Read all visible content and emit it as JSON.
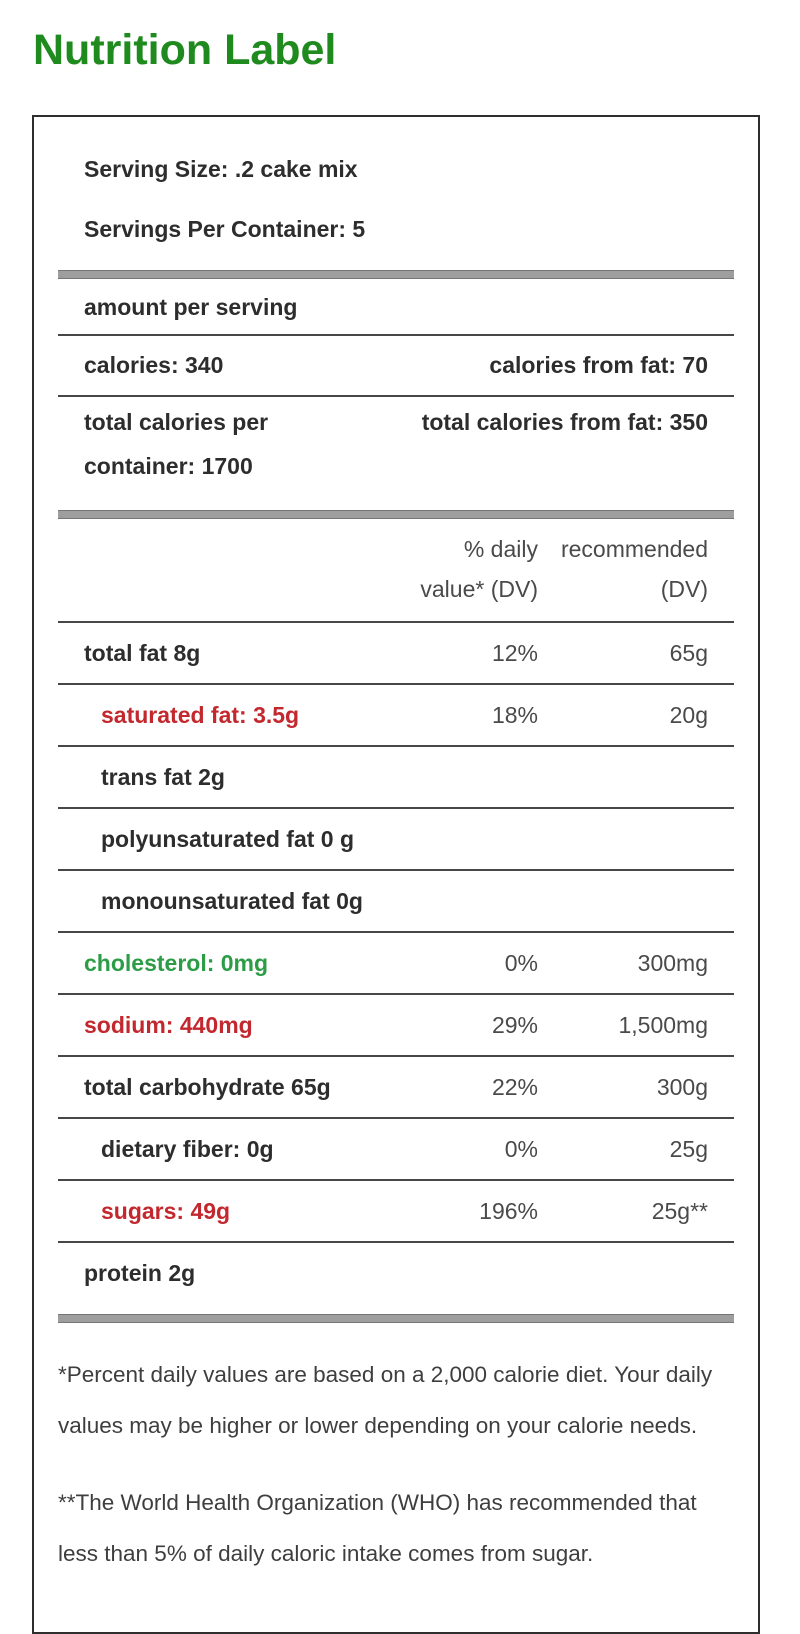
{
  "page": {
    "title": "Nutrition Label"
  },
  "label": {
    "serving_size": "Serving Size: .2 cake mix",
    "servings_per_container": "Servings Per Container: 5",
    "amount_per_serving": "amount per serving",
    "calories": "calories: 340",
    "calories_from_fat": "calories from fat: 70",
    "total_calories_per_container": "total calories per container: 1700",
    "total_calories_from_fat": "total calories from fat: 350",
    "columns": {
      "daily_value": "% daily value* (DV)",
      "recommended": "recommended (DV)"
    },
    "rows": [
      {
        "label": "total fat 8g",
        "dv": "12%",
        "recommended": "65g",
        "color": "default",
        "indent": false
      },
      {
        "label": "saturated fat: 3.5g",
        "dv": "18%",
        "recommended": "20g",
        "color": "red",
        "indent": true
      },
      {
        "label": "trans fat 2g",
        "dv": "",
        "recommended": "",
        "color": "default",
        "indent": true
      },
      {
        "label": "polyunsaturated fat 0 g",
        "dv": "",
        "recommended": "",
        "color": "default",
        "indent": true
      },
      {
        "label": "monounsaturated fat 0g",
        "dv": "",
        "recommended": "",
        "color": "default",
        "indent": true
      },
      {
        "label": "cholesterol: 0mg",
        "dv": "0%",
        "recommended": "300mg",
        "color": "green",
        "indent": false
      },
      {
        "label": "sodium: 440mg",
        "dv": "29%",
        "recommended": "1,500mg",
        "color": "red",
        "indent": false
      },
      {
        "label": "total carbohydrate 65g",
        "dv": "22%",
        "recommended": "300g",
        "color": "default",
        "indent": false
      },
      {
        "label": "dietary fiber: 0g",
        "dv": "0%",
        "recommended": "25g",
        "color": "default",
        "indent": true
      },
      {
        "label": "sugars: 49g",
        "dv": "196%",
        "recommended": "25g**",
        "color": "red",
        "indent": true
      },
      {
        "label": "protein 2g",
        "dv": "",
        "recommended": "",
        "color": "default",
        "indent": false
      }
    ],
    "footnotes": [
      "*Percent daily values are based on a 2,000 calorie diet. Your daily values may be higher or lower depending on your calorie needs.",
      "**The World Health Organization (WHO) has recommended that less than 5% of daily caloric intake comes from sugar."
    ],
    "colors": {
      "title": "#1f8b1f",
      "red": "#c2282e",
      "green": "#2d9c46",
      "text": "#2d2d2d",
      "muted": "#4a4a4a",
      "bar": "#9e9e9e",
      "border": "#2e2e2e",
      "line": "#474747"
    }
  }
}
